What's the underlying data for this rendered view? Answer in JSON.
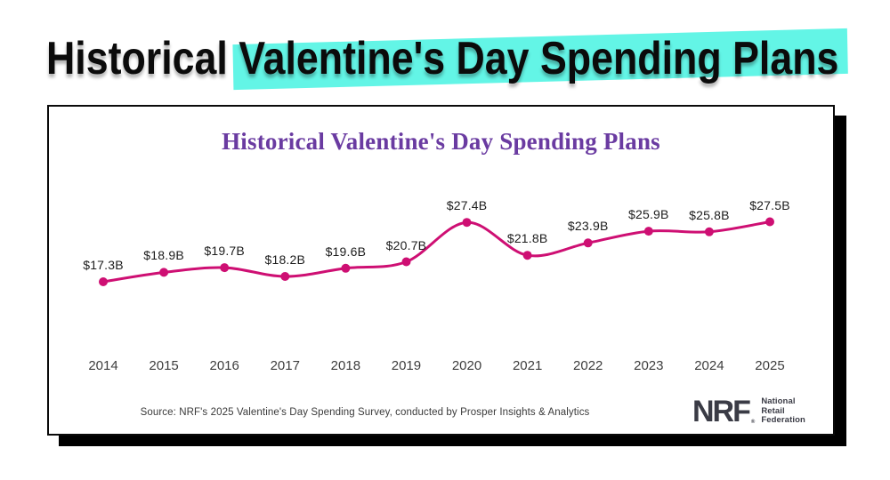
{
  "page": {
    "title_plain": "Historical ",
    "title_highlight": "Valentine's Day Spending Plans"
  },
  "card": {
    "chart_title": "Historical Valentine's Day Spending Plans",
    "source": "Source: NRF's 2025 Valentine's Day Spending Survey, conducted by Prosper Insights & Analytics",
    "logo": {
      "abbr": "NRF",
      "reg_mark": "®",
      "lines": [
        "National",
        "Retail",
        "Federation"
      ]
    }
  },
  "colors": {
    "highlight": "#63F5E6",
    "line": "#CE0F73",
    "chart_title": "#6A3BA1",
    "logo": "#3A3B45"
  },
  "chart_data": {
    "type": "line",
    "title": "Historical Valentine's Day Spending Plans",
    "categories": [
      "2014",
      "2015",
      "2016",
      "2017",
      "2018",
      "2019",
      "2020",
      "2021",
      "2022",
      "2023",
      "2024",
      "2025"
    ],
    "values": [
      17.3,
      18.9,
      19.7,
      18.2,
      19.6,
      20.7,
      27.4,
      21.8,
      23.9,
      25.9,
      25.8,
      27.5
    ],
    "point_labels": [
      "$17.3B",
      "$18.9B",
      "$19.7B",
      "$18.2B",
      "$19.6B",
      "$20.7B",
      "$27.4B",
      "$21.8B",
      "$23.9B",
      "$25.9B",
      "$25.8B",
      "$27.5B"
    ],
    "ylim": [
      17,
      28
    ],
    "grid": false,
    "legend": false,
    "smooth": true
  }
}
